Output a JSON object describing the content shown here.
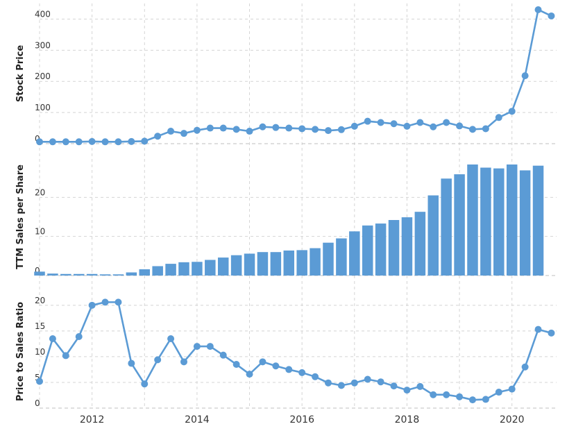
{
  "chart_data": [
    {
      "type": "line",
      "ylabel": "Stock Price",
      "ylim": [
        0,
        450
      ],
      "yticks": [
        0,
        100,
        200,
        300,
        400
      ],
      "xlim": [
        2011.0,
        2020.85
      ],
      "grid": true,
      "color": "#5b9bd5",
      "series": [
        {
          "x": [
            2011.0,
            2011.25,
            2011.5,
            2011.75,
            2012.0,
            2012.25,
            2012.5,
            2012.75,
            2013.0,
            2013.25,
            2013.5,
            2013.75,
            2014.0,
            2014.25,
            2014.5,
            2014.75,
            2015.0,
            2015.25,
            2015.5,
            2015.75,
            2016.0,
            2016.25,
            2016.5,
            2016.75,
            2017.0,
            2017.25,
            2017.5,
            2017.75,
            2018.0,
            2018.25,
            2018.5,
            2018.75,
            2019.0,
            2019.25,
            2019.5,
            2019.75,
            2020.0,
            2020.25,
            2020.5,
            2020.75
          ],
          "values": [
            6,
            6,
            6,
            6,
            7,
            6,
            6,
            7,
            8,
            24,
            40,
            33,
            43,
            50,
            50,
            46,
            40,
            54,
            52,
            50,
            48,
            46,
            42,
            45,
            56,
            72,
            68,
            64,
            56,
            68,
            54,
            68,
            57,
            46,
            48,
            84,
            104,
            218,
            430,
            410
          ]
        }
      ]
    },
    {
      "type": "bar",
      "ylabel": "TTM Sales per Share",
      "ylim": [
        0,
        30
      ],
      "yticks": [
        0,
        10,
        20
      ],
      "xlim": [
        2011.0,
        2020.85
      ],
      "grid": true,
      "color": "#5b9bd5",
      "series": [
        {
          "x": [
            2011.0,
            2011.25,
            2011.5,
            2011.75,
            2012.0,
            2012.25,
            2012.5,
            2012.75,
            2013.0,
            2013.25,
            2013.5,
            2013.75,
            2014.0,
            2014.25,
            2014.5,
            2014.75,
            2015.0,
            2015.25,
            2015.5,
            2015.75,
            2016.0,
            2016.25,
            2016.5,
            2016.75,
            2017.0,
            2017.25,
            2017.5,
            2017.75,
            2018.0,
            2018.25,
            2018.5,
            2018.75,
            2019.0,
            2019.25,
            2019.5,
            2019.75,
            2020.0,
            2020.25,
            2020.5
          ],
          "values": [
            1.0,
            0.5,
            0.4,
            0.4,
            0.4,
            0.3,
            0.3,
            0.8,
            1.6,
            2.4,
            3.0,
            3.4,
            3.5,
            4.0,
            4.6,
            5.2,
            5.6,
            6.0,
            6.0,
            6.4,
            6.5,
            7.0,
            8.4,
            9.5,
            11.3,
            12.8,
            13.3,
            14.2,
            14.9,
            16.3,
            20.5,
            24.8,
            25.9,
            28.4,
            27.6,
            27.4,
            28.4,
            26.9,
            28.1
          ]
        }
      ]
    },
    {
      "type": "line",
      "ylabel": "Price to Sales Ratio",
      "ylim": [
        0,
        22
      ],
      "yticks": [
        0,
        5,
        10,
        15,
        20
      ],
      "xlim": [
        2011.0,
        2020.85
      ],
      "grid": true,
      "color": "#5b9bd5",
      "series": [
        {
          "x": [
            2011.0,
            2011.25,
            2011.5,
            2011.75,
            2012.0,
            2012.25,
            2012.5,
            2012.75,
            2013.0,
            2013.25,
            2013.5,
            2013.75,
            2014.0,
            2014.25,
            2014.5,
            2014.75,
            2015.0,
            2015.25,
            2015.5,
            2015.75,
            2016.0,
            2016.25,
            2016.5,
            2016.75,
            2017.0,
            2017.25,
            2017.5,
            2017.75,
            2018.0,
            2018.25,
            2018.5,
            2018.75,
            2019.0,
            2019.25,
            2019.5,
            2019.75,
            2020.0,
            2020.25,
            2020.5,
            2020.75
          ],
          "values": [
            5.2,
            13.5,
            10.2,
            13.9,
            20.0,
            20.6,
            20.6,
            8.7,
            4.7,
            9.4,
            13.5,
            9.0,
            12.0,
            12.0,
            10.3,
            8.5,
            6.6,
            9.0,
            8.2,
            7.5,
            6.9,
            6.1,
            4.9,
            4.4,
            4.9,
            5.6,
            5.1,
            4.3,
            3.5,
            4.2,
            2.6,
            2.6,
            2.2,
            1.6,
            1.7,
            3.1,
            3.7,
            8.0,
            15.3,
            14.6
          ]
        }
      ]
    }
  ],
  "x_axis": {
    "tick_values": [
      2012,
      2014,
      2016,
      2018,
      2020
    ],
    "tick_labels": [
      "2012",
      "2014",
      "2016",
      "2018",
      "2020"
    ],
    "minor_grid": [
      2011,
      2013,
      2015,
      2017,
      2019
    ]
  }
}
